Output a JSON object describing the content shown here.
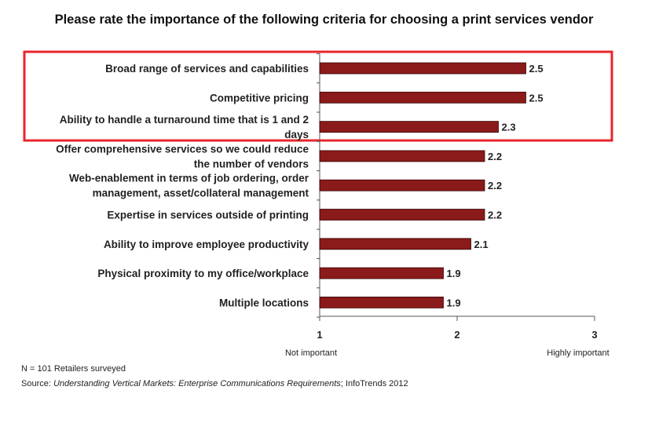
{
  "chart_data": {
    "type": "bar",
    "orientation": "horizontal",
    "title": "Please rate the importance of the following criteria for choosing a print services vendor",
    "categories": [
      [
        "Broad range of services and capabilities"
      ],
      [
        "Competitive pricing"
      ],
      [
        "Ability to handle a turnaround time that is 1 and 2",
        "days"
      ],
      [
        "Offer comprehensive services so we could reduce",
        "the number of vendors"
      ],
      [
        "Web-enablement in terms of job ordering, order",
        "management, asset/collateral management"
      ],
      [
        "Expertise in services outside of printing"
      ],
      [
        "Ability to improve employee productivity"
      ],
      [
        "Physical proximity to my office/workplace"
      ],
      [
        "Multiple locations"
      ]
    ],
    "values": [
      2.5,
      2.5,
      2.3,
      2.2,
      2.2,
      2.2,
      2.1,
      1.9,
      1.9
    ],
    "value_labels": [
      "2.5",
      "2.5",
      "2.3",
      "2.2",
      "2.2",
      "2.2",
      "2.1",
      "1.9",
      "1.9"
    ],
    "xlim": [
      1,
      3
    ],
    "xticks": [
      1,
      2,
      3
    ],
    "xtick_labels": [
      "1",
      "2",
      "3"
    ],
    "axis_low_label": "Not important",
    "axis_high_label": "Highly important",
    "highlight_rows": [
      0,
      1,
      2
    ],
    "colors": {
      "bar_fill": "#8b1a1a",
      "bar_stroke": "#3a0606",
      "highlight_box": "#e8262c",
      "axis": "#555555"
    }
  },
  "footnote": {
    "n": "N = 101 Retailers surveyed",
    "source_prefix": "Source: ",
    "source_title": "Understanding Vertical Markets: Enterprise Communications Requirements",
    "source_suffix": "; InfoTrends 2012"
  }
}
